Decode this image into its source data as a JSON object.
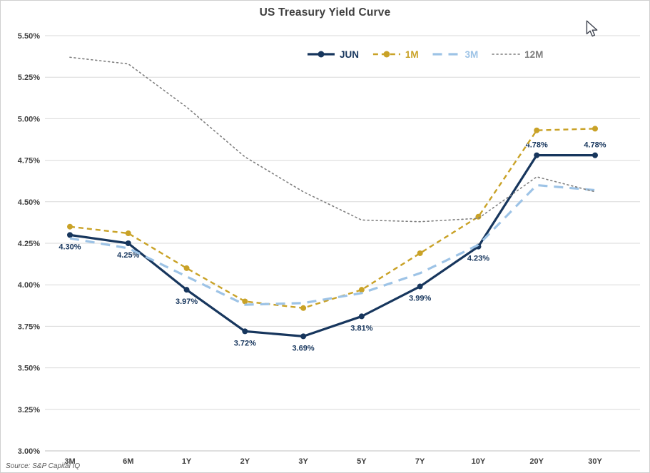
{
  "chart_data": {
    "type": "line",
    "title": "US Treasury Yield Curve",
    "source_note": "Source: S&P Capital IQ",
    "categories": [
      "3M",
      "6M",
      "1Y",
      "2Y",
      "3Y",
      "5Y",
      "7Y",
      "10Y",
      "20Y",
      "30Y"
    ],
    "series": [
      {
        "name": "JUN",
        "color": "#17365d",
        "style": "solid",
        "markers": true,
        "data_labels": true,
        "values": [
          4.3,
          4.25,
          3.97,
          3.72,
          3.69,
          3.81,
          3.99,
          4.23,
          4.78,
          4.78
        ]
      },
      {
        "name": "1M",
        "color": "#c9a227",
        "style": "dashed",
        "markers": true,
        "data_labels": false,
        "values": [
          4.35,
          4.31,
          4.1,
          3.9,
          3.86,
          3.97,
          4.19,
          4.41,
          4.93,
          4.94
        ]
      },
      {
        "name": "3M",
        "color": "#9dc3e6",
        "style": "long-dash",
        "markers": false,
        "data_labels": false,
        "values": [
          4.28,
          4.22,
          4.05,
          3.88,
          3.89,
          3.95,
          4.07,
          4.24,
          4.6,
          4.57
        ]
      },
      {
        "name": "12M",
        "color": "#7f7f7f",
        "style": "dotted",
        "markers": false,
        "data_labels": false,
        "values": [
          5.37,
          5.33,
          5.07,
          4.77,
          4.56,
          4.39,
          4.38,
          4.4,
          4.65,
          4.56
        ]
      }
    ],
    "ylim": [
      3.0,
      5.5
    ],
    "ytick_step": 0.25,
    "ytick_labels": [
      "3.00%",
      "3.25%",
      "3.50%",
      "3.75%",
      "4.00%",
      "4.25%",
      "4.50%",
      "4.75%",
      "5.00%",
      "5.25%",
      "5.50%"
    ],
    "xlabel": "",
    "ylabel": "",
    "grid": true,
    "legend_position": "top-center",
    "colors": {
      "grid_line": "#d9d9d9",
      "axis_line": "#bfbfbf",
      "tick_label": "#404040",
      "title": "#404040"
    }
  }
}
